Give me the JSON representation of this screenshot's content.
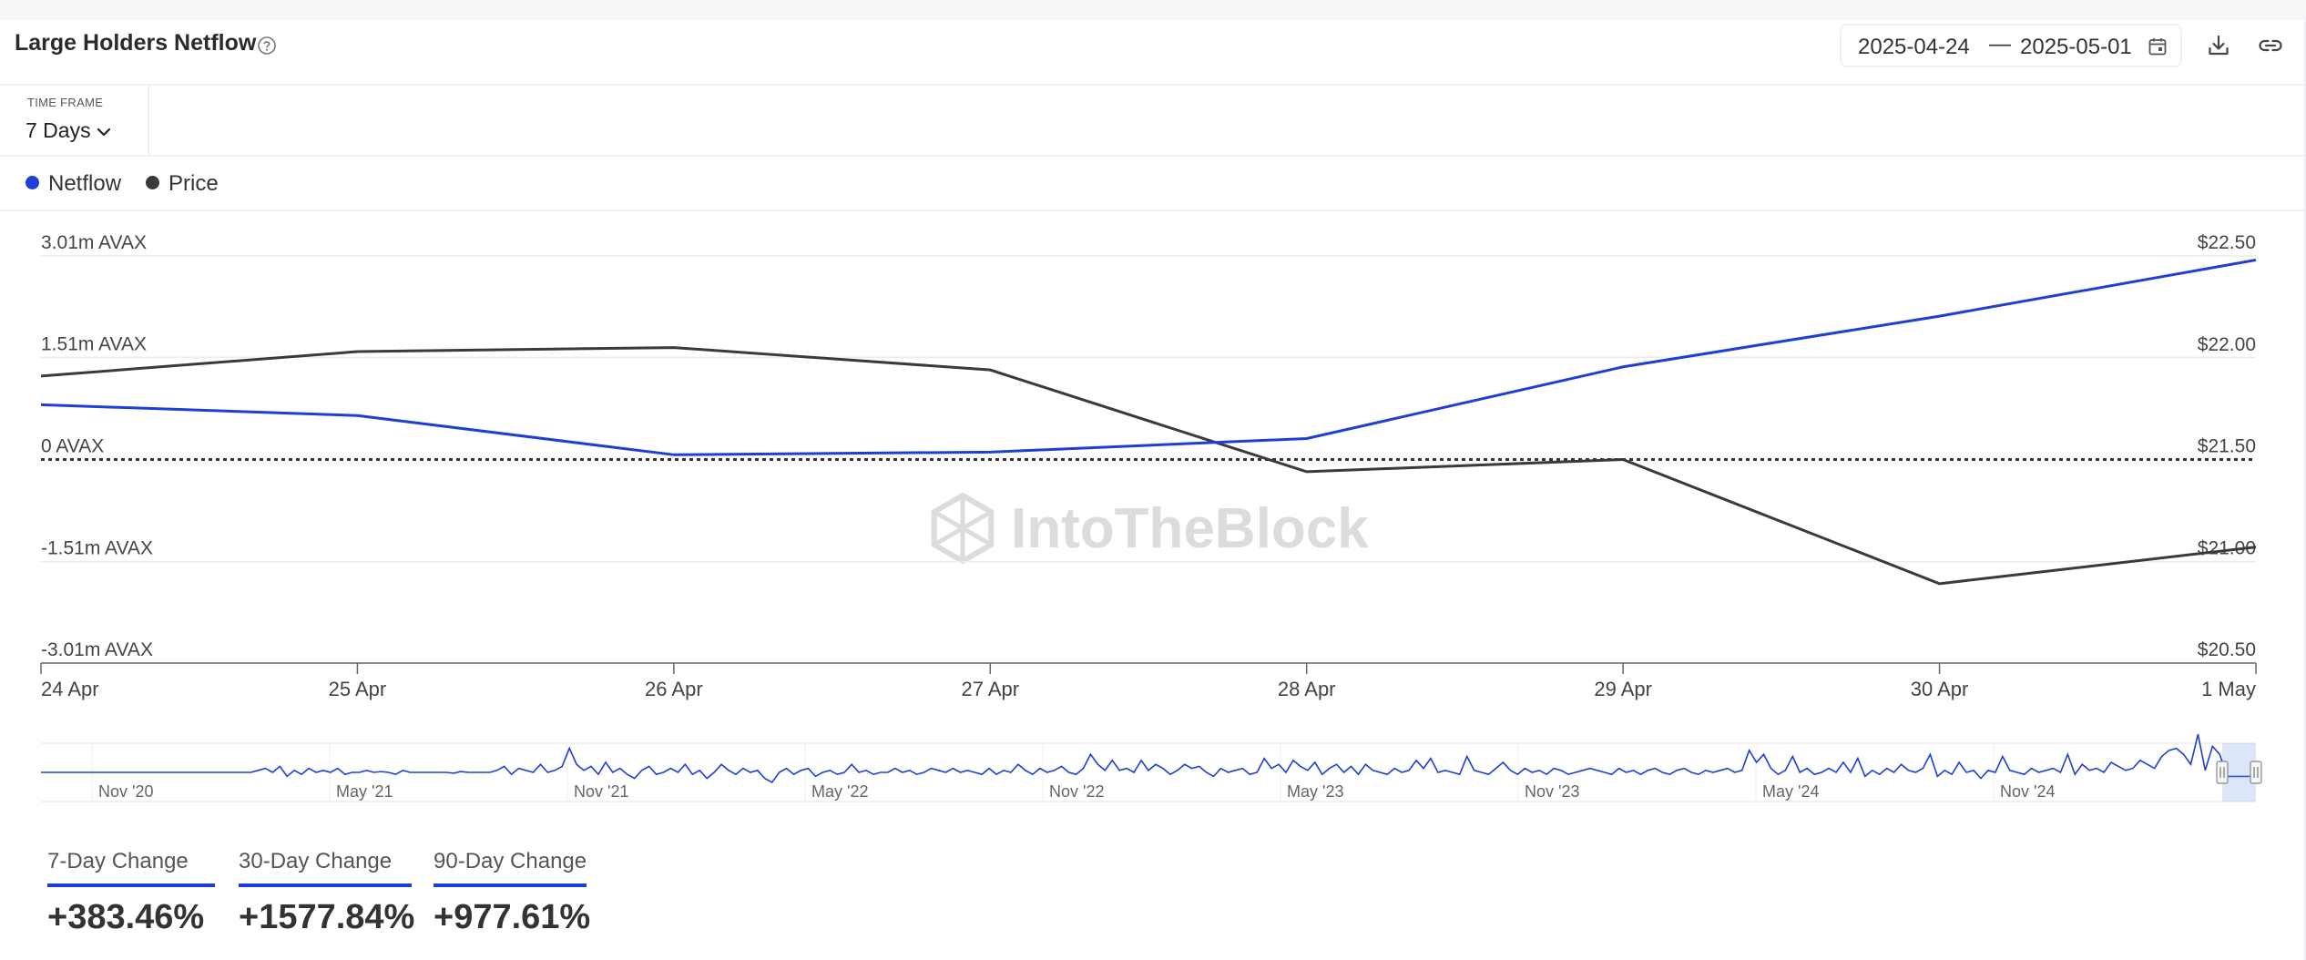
{
  "header": {
    "title": "Large Holders Netflow",
    "date_start": "2025-04-24",
    "date_sep": "—",
    "date_end": "2025-05-01"
  },
  "timeframe": {
    "label": "TIME FRAME",
    "value": "7 Days"
  },
  "legend": [
    {
      "label": "Netflow",
      "color": "#1e3fd6"
    },
    {
      "label": "Price",
      "color": "#3a3a3a"
    }
  ],
  "watermark": "IntoTheBlock",
  "chart_data": {
    "type": "line",
    "x": [
      "24 Apr",
      "25 Apr",
      "26 Apr",
      "27 Apr",
      "28 Apr",
      "29 Apr",
      "30 Apr",
      "1 May"
    ],
    "series": [
      {
        "name": "Netflow",
        "axis": "left",
        "unit": "m AVAX",
        "color": "#1e3fd6",
        "values": [
          0.81,
          0.65,
          0.07,
          0.11,
          0.31,
          1.37,
          2.12,
          2.95
        ]
      },
      {
        "name": "Price",
        "axis": "right",
        "unit": "USD",
        "color": "#3a3a3a",
        "values": [
          21.91,
          22.03,
          22.05,
          21.94,
          21.44,
          21.5,
          20.89,
          21.07
        ]
      }
    ],
    "left_axis": {
      "range": [
        -3.01,
        3.01
      ],
      "ticks": [
        3.01,
        1.51,
        0,
        -1.51,
        -3.01
      ],
      "tick_labels": [
        "3.01m AVAX",
        "1.51m AVAX",
        "0 AVAX",
        "-1.51m AVAX",
        "-3.01m AVAX"
      ]
    },
    "right_axis": {
      "range": [
        20.5,
        22.5
      ],
      "ticks": [
        22.5,
        22.0,
        21.5,
        21.0,
        20.5
      ],
      "tick_labels": [
        "$22.50",
        "$22.00",
        "$21.50",
        "$21.00",
        "$20.50"
      ]
    },
    "zero_line": "dotted",
    "grid": true,
    "title": "",
    "xlabel": "",
    "ylabel": ""
  },
  "navigator": {
    "labels": [
      "Nov '20",
      "May '21",
      "Nov '21",
      "May '22",
      "Nov '22",
      "May '23",
      "Nov '23",
      "May '24",
      "Nov '24"
    ],
    "values": [
      0.5,
      0.5,
      0.5,
      0.5,
      0.5,
      0.5,
      0.5,
      0.5,
      0.5,
      0.5,
      0.5,
      0.5,
      0.5,
      0.5,
      0.5,
      0.5,
      0.5,
      0.5,
      0.5,
      0.5,
      0.5,
      0.5,
      0.5,
      0.5,
      0.5,
      0.5,
      0.5,
      0.5,
      0.5,
      0.5,
      0.55,
      0.6,
      0.5,
      0.65,
      0.4,
      0.55,
      0.45,
      0.6,
      0.5,
      0.55,
      0.5,
      0.6,
      0.45,
      0.5,
      0.5,
      0.55,
      0.5,
      0.52,
      0.5,
      0.45,
      0.55,
      0.5,
      0.5,
      0.5,
      0.5,
      0.5,
      0.5,
      0.48,
      0.52,
      0.5,
      0.5,
      0.5,
      0.5,
      0.55,
      0.65,
      0.45,
      0.6,
      0.55,
      0.5,
      0.7,
      0.5,
      0.55,
      0.65,
      1.1,
      0.7,
      0.55,
      0.65,
      0.45,
      0.75,
      0.5,
      0.6,
      0.45,
      0.35,
      0.55,
      0.65,
      0.45,
      0.5,
      0.6,
      0.5,
      0.7,
      0.45,
      0.55,
      0.35,
      0.5,
      0.7,
      0.55,
      0.45,
      0.6,
      0.5,
      0.55,
      0.35,
      0.25,
      0.5,
      0.6,
      0.45,
      0.55,
      0.6,
      0.4,
      0.5,
      0.55,
      0.45,
      0.5,
      0.7,
      0.5,
      0.55,
      0.45,
      0.5,
      0.5,
      0.6,
      0.5,
      0.55,
      0.45,
      0.5,
      0.6,
      0.55,
      0.5,
      0.6,
      0.5,
      0.55,
      0.5,
      0.45,
      0.6,
      0.45,
      0.55,
      0.5,
      0.7,
      0.55,
      0.45,
      0.6,
      0.5,
      0.55,
      0.65,
      0.5,
      0.45,
      0.6,
      0.95,
      0.7,
      0.55,
      0.8,
      0.55,
      0.6,
      0.5,
      0.8,
      0.55,
      0.7,
      0.6,
      0.45,
      0.55,
      0.7,
      0.6,
      0.65,
      0.5,
      0.4,
      0.6,
      0.5,
      0.55,
      0.6,
      0.45,
      0.5,
      0.85,
      0.6,
      0.7,
      0.5,
      0.8,
      0.65,
      0.55,
      0.75,
      0.45,
      0.6,
      0.7,
      0.5,
      0.65,
      0.45,
      0.7,
      0.55,
      0.5,
      0.45,
      0.6,
      0.5,
      0.55,
      0.8,
      0.6,
      0.85,
      0.5,
      0.55,
      0.5,
      0.45,
      0.9,
      0.55,
      0.5,
      0.45,
      0.6,
      0.75,
      0.55,
      0.45,
      0.6,
      0.5,
      0.55,
      0.45,
      0.6,
      0.55,
      0.45,
      0.5,
      0.55,
      0.6,
      0.55,
      0.5,
      0.45,
      0.6,
      0.5,
      0.55,
      0.45,
      0.55,
      0.6,
      0.5,
      0.45,
      0.55,
      0.6,
      0.5,
      0.45,
      0.55,
      0.5,
      0.55,
      0.6,
      0.5,
      0.55,
      1.05,
      0.75,
      0.95,
      0.6,
      0.45,
      0.55,
      0.9,
      0.5,
      0.6,
      0.45,
      0.5,
      0.6,
      0.5,
      0.75,
      0.5,
      0.85,
      0.4,
      0.55,
      0.45,
      0.6,
      0.5,
      0.7,
      0.55,
      0.5,
      0.6,
      0.95,
      0.4,
      0.55,
      0.45,
      0.75,
      0.5,
      0.55,
      0.35,
      0.55,
      0.5,
      0.9,
      0.55,
      0.5,
      0.45,
      0.6,
      0.5,
      0.55,
      0.6,
      0.5,
      0.95,
      0.45,
      0.7,
      0.55,
      0.6,
      0.5,
      0.75,
      0.65,
      0.55,
      0.6,
      0.8,
      0.7,
      0.6,
      0.9,
      1.05,
      1.1,
      0.95,
      0.7,
      1.45,
      0.55,
      1.15,
      0.95,
      0.4,
      0.4,
      0.4,
      0.4,
      0.4
    ],
    "pct_changes": {
      "7_day_label": "7-Day Change",
      "7_day_value": "+383.46%",
      "30_day_label": "30-Day Change",
      "30_day_value": "+1577.84%",
      "90_day_label": "90-Day Change",
      "90_day_value": "+977.61%"
    }
  }
}
